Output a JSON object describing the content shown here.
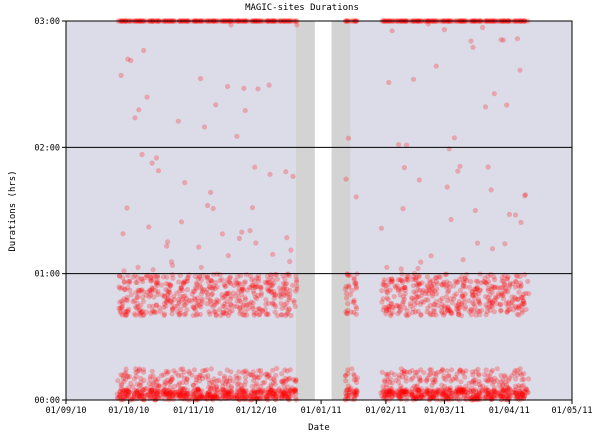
{
  "chart_data": {
    "type": "scatter",
    "title": "MAGIC-sites Durations",
    "xlabel": "Date",
    "ylabel": "Durations (hrs)",
    "x_ticks": [
      "01/09/10",
      "01/10/10",
      "01/11/10",
      "01/12/10",
      "01/01/11",
      "01/02/11",
      "01/03/11",
      "01/04/11",
      "01/05/11"
    ],
    "y_ticks": [
      "00:00",
      "01:00",
      "02:00",
      "03:00"
    ],
    "xlim": [
      "2010-09-01",
      "2011-05-01"
    ],
    "ylim": [
      "00:00",
      "03:00"
    ],
    "gridlines_y": [
      "01:00",
      "02:00",
      "03:00"
    ],
    "grid": "horizontal",
    "legend": "none",
    "background_color": "#dcdce8",
    "gap_band_color": "#d3d3d3",
    "point_color": "#ff0000",
    "point_opacity": 0.25,
    "shaded_periods": [
      {
        "kind": "gap",
        "start": "2010-12-20",
        "end": "2011-01-15"
      },
      {
        "kind": "no-data",
        "start": "2010-12-29",
        "end": "2011-01-06"
      }
    ],
    "series": [
      {
        "segments": [
          {
            "start": "2010-09-26",
            "end": "2010-12-20"
          },
          {
            "start": "2011-01-13",
            "end": "2011-01-18"
          },
          {
            "start": "2011-01-30",
            "end": "2011-04-10"
          }
        ],
        "clusters": [
          {
            "range": [
              "00:00",
              "00:05"
            ],
            "density": "very high"
          },
          {
            "range": [
              "00:05",
              "00:15"
            ],
            "density": "high"
          },
          {
            "range": [
              "00:40",
              "01:00"
            ],
            "density": "very high"
          },
          {
            "range": [
              "01:00",
              "03:00"
            ],
            "density": "sparse"
          },
          {
            "range": [
              "03:00",
              "03:00"
            ],
            "density": "high"
          }
        ]
      }
    ]
  }
}
